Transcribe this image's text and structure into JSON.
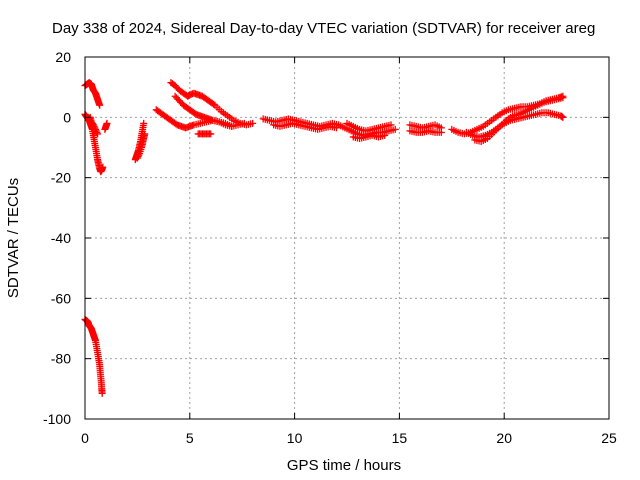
{
  "chart_data": {
    "type": "scatter",
    "title": "Day 338 of 2024, Sidereal Day-to-day VTEC variation (SDTVAR) for receiver areg",
    "xlabel": "GPS time / hours",
    "ylabel": "SDTVAR / TECUs",
    "xlim": [
      0,
      25
    ],
    "ylim": [
      -100,
      20
    ],
    "xticks": [
      0,
      5,
      10,
      15,
      20,
      25
    ],
    "yticks": [
      -100,
      -80,
      -60,
      -40,
      -20,
      0,
      20
    ],
    "grid": true,
    "marker": "plus",
    "color": "#ff0000",
    "series": [
      {
        "name": "SDTVAR",
        "segments": [
          [
            [
              0.0,
              10.5
            ],
            [
              0.1,
              11.0
            ],
            [
              0.2,
              11.5
            ],
            [
              0.3,
              11.0
            ],
            [
              0.35,
              10.0
            ],
            [
              0.4,
              9.0
            ],
            [
              0.5,
              8.0
            ],
            [
              0.55,
              7.0
            ],
            [
              0.6,
              6.0
            ],
            [
              0.65,
              5.0
            ],
            [
              0.7,
              4.0
            ]
          ],
          [
            [
              0.0,
              1.0
            ],
            [
              0.05,
              0.5
            ],
            [
              0.1,
              0.0
            ],
            [
              0.15,
              -0.5
            ],
            [
              0.2,
              -1.0
            ],
            [
              0.25,
              -2.0
            ],
            [
              0.3,
              -3.0
            ],
            [
              0.35,
              -4.0
            ],
            [
              0.4,
              -6.0
            ],
            [
              0.45,
              -8.0
            ],
            [
              0.5,
              -10.0
            ],
            [
              0.55,
              -12.0
            ],
            [
              0.6,
              -14.0
            ],
            [
              0.65,
              -15.5
            ],
            [
              0.7,
              -17.0
            ],
            [
              0.75,
              -18.0
            ],
            [
              0.8,
              -17.5
            ],
            [
              0.85,
              -16.5
            ]
          ],
          [
            [
              0.15,
              -1.0
            ],
            [
              0.25,
              0.0
            ],
            [
              0.3,
              -1.5
            ],
            [
              0.4,
              -2.5
            ],
            [
              0.5,
              -4.0
            ],
            [
              0.6,
              -5.5
            ]
          ],
          [
            [
              0.95,
              -4.0
            ],
            [
              1.0,
              -3.0
            ],
            [
              1.05,
              -2.0
            ]
          ],
          [
            [
              2.4,
              -14.0
            ],
            [
              2.45,
              -13.0
            ],
            [
              2.5,
              -12.0
            ],
            [
              2.55,
              -11.0
            ],
            [
              2.6,
              -9.5
            ],
            [
              2.65,
              -8.0
            ],
            [
              2.7,
              -6.0
            ],
            [
              2.75,
              -4.0
            ],
            [
              2.8,
              -2.0
            ]
          ],
          [
            [
              2.5,
              -13.5
            ],
            [
              2.6,
              -12.0
            ],
            [
              2.7,
              -10.0
            ],
            [
              2.75,
              -8.5
            ],
            [
              2.8,
              -7.0
            ],
            [
              2.85,
              -5.5
            ]
          ],
          [
            [
              4.1,
              11.5
            ],
            [
              4.3,
              10.5
            ],
            [
              4.5,
              9.0
            ],
            [
              4.7,
              8.0
            ],
            [
              4.9,
              7.0
            ],
            [
              5.0,
              7.5
            ],
            [
              5.2,
              8.0
            ],
            [
              5.4,
              7.5
            ],
            [
              5.6,
              7.0
            ],
            [
              5.8,
              6.0
            ],
            [
              6.0,
              5.0
            ],
            [
              6.2,
              4.0
            ],
            [
              6.5,
              2.0
            ],
            [
              6.8,
              0.5
            ],
            [
              7.1,
              -1.0
            ],
            [
              7.4,
              -2.0
            ],
            [
              7.7,
              -2.5
            ],
            [
              8.0,
              -2.0
            ]
          ],
          [
            [
              4.3,
              7.0
            ],
            [
              4.5,
              5.5
            ],
            [
              4.7,
              4.0
            ],
            [
              4.9,
              3.0
            ],
            [
              5.1,
              2.0
            ],
            [
              5.3,
              1.0
            ],
            [
              5.5,
              0.5
            ],
            [
              5.7,
              0.0
            ],
            [
              5.9,
              -0.5
            ],
            [
              6.1,
              -1.0
            ],
            [
              6.4,
              -1.5
            ],
            [
              6.7,
              -2.5
            ],
            [
              7.0,
              -3.0
            ],
            [
              7.3,
              -2.5
            ],
            [
              7.6,
              -2.0
            ]
          ],
          [
            [
              3.4,
              2.5
            ],
            [
              3.6,
              1.5
            ],
            [
              3.8,
              0.5
            ],
            [
              4.0,
              -0.5
            ],
            [
              4.2,
              -1.5
            ],
            [
              4.4,
              -2.5
            ],
            [
              4.6,
              -3.0
            ],
            [
              4.8,
              -3.5
            ],
            [
              5.0,
              -3.0
            ],
            [
              5.2,
              -2.5
            ],
            [
              5.5,
              -2.0
            ],
            [
              5.8,
              -1.5
            ],
            [
              6.1,
              -1.0
            ],
            [
              6.4,
              -1.5
            ],
            [
              6.7,
              -2.0
            ],
            [
              7.0,
              -3.0
            ]
          ],
          [
            [
              5.4,
              -5.5
            ],
            [
              5.6,
              -5.5
            ],
            [
              5.8,
              -5.5
            ],
            [
              6.0,
              -5.5
            ]
          ],
          [
            [
              8.5,
              -0.5
            ],
            [
              8.8,
              -1.0
            ],
            [
              9.1,
              -1.5
            ],
            [
              9.4,
              -1.0
            ],
            [
              9.7,
              -0.5
            ],
            [
              10.0,
              -1.0
            ],
            [
              10.3,
              -1.5
            ],
            [
              10.6,
              -2.0
            ],
            [
              10.9,
              -2.5
            ],
            [
              11.2,
              -3.0
            ],
            [
              11.5,
              -2.5
            ],
            [
              11.8,
              -2.0
            ],
            [
              12.1,
              -2.5
            ],
            [
              12.4,
              -3.5
            ],
            [
              12.7,
              -4.5
            ],
            [
              13.0,
              -5.5
            ],
            [
              13.3,
              -6.0
            ],
            [
              13.6,
              -5.5
            ],
            [
              13.9,
              -5.0
            ],
            [
              14.2,
              -5.0
            ],
            [
              14.5,
              -4.5
            ],
            [
              14.8,
              -4.0
            ]
          ],
          [
            [
              9.0,
              -2.5
            ],
            [
              9.3,
              -3.0
            ],
            [
              9.6,
              -2.5
            ],
            [
              9.9,
              -2.0
            ],
            [
              10.2,
              -2.5
            ],
            [
              10.5,
              -3.0
            ],
            [
              10.8,
              -3.5
            ],
            [
              11.1,
              -4.0
            ],
            [
              11.4,
              -3.5
            ],
            [
              11.7,
              -3.0
            ],
            [
              12.0,
              -3.5
            ]
          ],
          [
            [
              12.5,
              -2.0
            ],
            [
              12.8,
              -3.0
            ],
            [
              13.1,
              -4.0
            ],
            [
              13.4,
              -4.5
            ],
            [
              13.7,
              -4.0
            ],
            [
              14.0,
              -3.5
            ],
            [
              14.3,
              -3.0
            ],
            [
              14.6,
              -2.5
            ]
          ],
          [
            [
              12.8,
              -6.5
            ],
            [
              13.1,
              -7.0
            ],
            [
              13.4,
              -6.5
            ],
            [
              13.7,
              -6.0
            ],
            [
              14.0,
              -6.5
            ],
            [
              14.3,
              -6.0
            ]
          ],
          [
            [
              15.5,
              -2.5
            ],
            [
              15.8,
              -3.0
            ],
            [
              16.1,
              -3.5
            ],
            [
              16.4,
              -3.0
            ],
            [
              16.7,
              -2.5
            ],
            [
              17.0,
              -3.5
            ]
          ],
          [
            [
              15.5,
              -4.5
            ],
            [
              15.8,
              -5.0
            ],
            [
              16.1,
              -5.0
            ],
            [
              16.4,
              -4.5
            ],
            [
              16.7,
              -5.0
            ],
            [
              17.0,
              -5.0
            ]
          ],
          [
            [
              17.5,
              -4.0
            ],
            [
              17.8,
              -5.0
            ],
            [
              18.1,
              -5.5
            ],
            [
              18.4,
              -5.0
            ],
            [
              18.7,
              -4.0
            ],
            [
              19.0,
              -3.0
            ],
            [
              19.3,
              -1.5
            ],
            [
              19.6,
              0.0
            ],
            [
              19.9,
              1.5
            ],
            [
              20.2,
              2.5
            ],
            [
              20.5,
              3.0
            ],
            [
              20.8,
              3.5
            ],
            [
              21.1,
              3.5
            ],
            [
              21.4,
              4.0
            ],
            [
              21.7,
              4.5
            ],
            [
              22.0,
              5.5
            ],
            [
              22.3,
              6.0
            ],
            [
              22.6,
              6.5
            ],
            [
              22.8,
              7.0
            ]
          ],
          [
            [
              18.2,
              -5.0
            ],
            [
              18.5,
              -6.0
            ],
            [
              18.8,
              -6.5
            ],
            [
              19.1,
              -6.0
            ],
            [
              19.4,
              -5.0
            ],
            [
              19.7,
              -3.5
            ],
            [
              20.0,
              -2.0
            ],
            [
              20.3,
              -1.0
            ],
            [
              20.6,
              -0.5
            ],
            [
              20.9,
              0.0
            ],
            [
              21.2,
              0.5
            ],
            [
              21.5,
              1.0
            ],
            [
              21.8,
              1.5
            ],
            [
              22.1,
              1.5
            ],
            [
              22.4,
              1.0
            ],
            [
              22.7,
              0.5
            ],
            [
              22.8,
              0.0
            ]
          ],
          [
            [
              18.6,
              -7.5
            ],
            [
              18.9,
              -8.0
            ],
            [
              19.2,
              -7.0
            ],
            [
              19.5,
              -5.0
            ],
            [
              19.8,
              -3.0
            ],
            [
              20.1,
              -1.0
            ],
            [
              20.4,
              0.5
            ],
            [
              20.7,
              1.0
            ],
            [
              21.0,
              2.0
            ],
            [
              21.3,
              3.0
            ],
            [
              21.6,
              4.0
            ],
            [
              21.9,
              5.0
            ],
            [
              22.2,
              5.5
            ],
            [
              22.5,
              6.0
            ],
            [
              22.8,
              6.5
            ]
          ],
          [
            [
              0.0,
              -67.0
            ],
            [
              0.1,
              -67.5
            ],
            [
              0.15,
              -68.0
            ],
            [
              0.2,
              -69.0
            ],
            [
              0.25,
              -69.5
            ],
            [
              0.3,
              -70.0
            ],
            [
              0.35,
              -71.0
            ],
            [
              0.4,
              -72.0
            ],
            [
              0.45,
              -73.0
            ],
            [
              0.5,
              -74.0
            ],
            [
              0.55,
              -76.0
            ],
            [
              0.6,
              -78.0
            ],
            [
              0.65,
              -80.0
            ],
            [
              0.7,
              -82.0
            ],
            [
              0.72,
              -84.0
            ],
            [
              0.75,
              -86.0
            ],
            [
              0.78,
              -88.0
            ],
            [
              0.8,
              -90.0
            ],
            [
              0.82,
              -91.5
            ]
          ]
        ]
      }
    ]
  }
}
